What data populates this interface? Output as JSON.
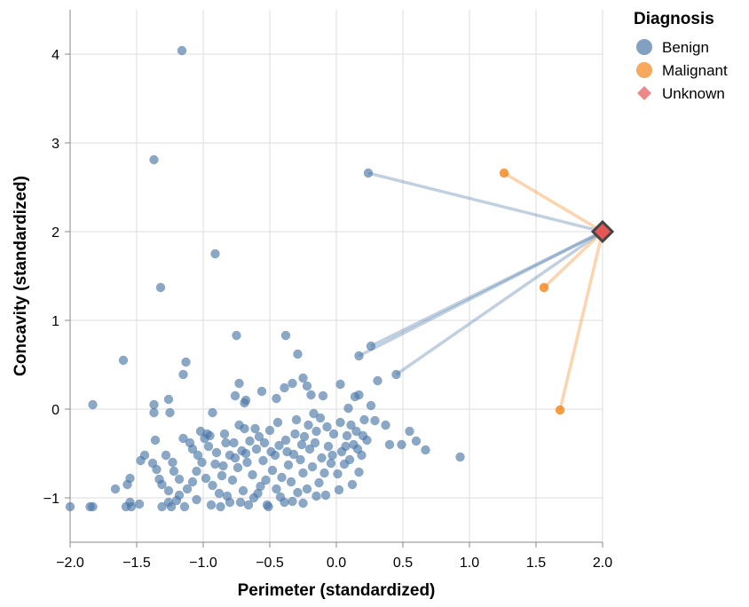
{
  "chart_data": {
    "type": "scatter",
    "xlabel": "Perimeter (standardized)",
    "ylabel": "Concavity (standardized)",
    "xlim": [
      -2.0,
      2.0
    ],
    "ylim": [
      -1.5,
      4.5
    ],
    "x_ticks": [
      -2.0,
      -1.5,
      -1.0,
      -0.5,
      0.0,
      0.5,
      1.0,
      1.5,
      2.0
    ],
    "y_ticks": [
      -1,
      0,
      1,
      2,
      3,
      4
    ],
    "x_tick_labels": [
      "−2.0",
      "−1.5",
      "−1.0",
      "−0.5",
      "0.0",
      "0.5",
      "1.0",
      "1.5",
      "2.0"
    ],
    "y_tick_labels": [
      "−1",
      "0",
      "1",
      "2",
      "3",
      "4"
    ],
    "grid": true,
    "legend": {
      "title": "Diagnosis",
      "placement": "top-right",
      "entries": [
        {
          "label": "Benign",
          "color": "#4c78a8",
          "shape": "circle"
        },
        {
          "label": "Malignant",
          "color": "#f58518",
          "shape": "circle"
        },
        {
          "label": "Unknown",
          "color": "#e45756",
          "shape": "diamond"
        }
      ]
    },
    "unknown_point": {
      "x": 2.0,
      "y": 2.0
    },
    "neighbor_lines": [
      {
        "diagnosis": "Benign",
        "x": 0.24,
        "y": 2.66
      },
      {
        "diagnosis": "Benign",
        "x": 0.26,
        "y": 0.71
      },
      {
        "diagnosis": "Benign",
        "x": 0.17,
        "y": 0.6
      },
      {
        "diagnosis": "Benign",
        "x": 0.45,
        "y": 0.39
      },
      {
        "diagnosis": "Malignant",
        "x": 1.26,
        "y": 2.66
      },
      {
        "diagnosis": "Malignant",
        "x": 1.56,
        "y": 1.37
      },
      {
        "diagnosis": "Malignant",
        "x": 1.68,
        "y": -0.01
      }
    ],
    "series": [
      {
        "name": "Benign",
        "points": [
          [
            -1.16,
            4.04
          ],
          [
            -1.37,
            2.81
          ],
          [
            -0.91,
            1.75
          ],
          [
            -1.32,
            1.37
          ],
          [
            0.24,
            2.66
          ],
          [
            -0.75,
            0.83
          ],
          [
            -0.38,
            0.83
          ],
          [
            -0.29,
            0.62
          ],
          [
            -1.6,
            0.55
          ],
          [
            -1.13,
            0.53
          ],
          [
            -1.15,
            0.39
          ],
          [
            0.26,
            0.71
          ],
          [
            0.17,
            0.6
          ],
          [
            0.45,
            0.39
          ],
          [
            0.31,
            0.32
          ],
          [
            -1.83,
            0.05
          ],
          [
            -1.37,
            0.05
          ],
          [
            -1.26,
            0.11
          ],
          [
            -1.25,
            -0.04
          ],
          [
            -1.37,
            -0.04
          ],
          [
            -0.93,
            -0.04
          ],
          [
            -0.73,
            0.29
          ],
          [
            -0.68,
            0.1
          ],
          [
            -0.76,
            0.15
          ],
          [
            -0.69,
            0.07
          ],
          [
            -0.56,
            0.2
          ],
          [
            -0.45,
            0.12
          ],
          [
            -0.39,
            0.24
          ],
          [
            -0.33,
            0.29
          ],
          [
            -0.25,
            0.35
          ],
          [
            -0.22,
            0.26
          ],
          [
            -0.19,
            0.16
          ],
          [
            -0.1,
            0.15
          ],
          [
            0.03,
            0.28
          ],
          [
            0.09,
            0.01
          ],
          [
            0.14,
            0.14
          ],
          [
            0.17,
            0.16
          ],
          [
            0.26,
            0.04
          ],
          [
            0.29,
            -0.13
          ],
          [
            0.37,
            -0.18
          ],
          [
            0.4,
            -0.4
          ],
          [
            0.55,
            -0.25
          ],
          [
            0.6,
            -0.36
          ],
          [
            0.67,
            -0.46
          ],
          [
            0.93,
            -0.54
          ],
          [
            0.49,
            -0.4
          ],
          [
            -2.0,
            -1.1
          ],
          [
            -1.83,
            -1.1
          ],
          [
            -1.85,
            -1.1
          ],
          [
            -1.66,
            -0.9
          ],
          [
            -1.58,
            -1.1
          ],
          [
            -1.54,
            -1.1
          ],
          [
            -1.55,
            -1.05
          ],
          [
            -1.48,
            -1.07
          ],
          [
            -1.57,
            -0.85
          ],
          [
            -1.55,
            -0.78
          ],
          [
            -1.47,
            -0.58
          ],
          [
            -1.44,
            -0.52
          ],
          [
            -1.38,
            -0.61
          ],
          [
            -1.35,
            -0.68
          ],
          [
            -1.36,
            -0.35
          ],
          [
            -1.33,
            -0.79
          ],
          [
            -1.31,
            -0.85
          ],
          [
            -1.26,
            -0.92
          ],
          [
            -1.26,
            -1.05
          ],
          [
            -1.31,
            -1.1
          ],
          [
            -1.24,
            -1.1
          ],
          [
            -1.23,
            -0.6
          ],
          [
            -1.2,
            -1.03
          ],
          [
            -1.18,
            -0.79
          ],
          [
            -1.15,
            -0.33
          ],
          [
            -1.1,
            -0.38
          ],
          [
            -1.08,
            -0.82
          ],
          [
            -1.05,
            -0.7
          ],
          [
            -1.04,
            -0.52
          ],
          [
            -1.02,
            -0.25
          ],
          [
            -0.99,
            -0.33
          ],
          [
            -0.97,
            -0.28
          ],
          [
            -0.95,
            -0.3
          ],
          [
            -0.93,
            -0.86
          ],
          [
            -0.9,
            -0.49
          ],
          [
            -0.88,
            -0.95
          ],
          [
            -0.86,
            -0.75
          ],
          [
            -0.85,
            -0.64
          ],
          [
            -0.83,
            -0.38
          ],
          [
            -0.8,
            -0.52
          ],
          [
            -0.8,
            -1.05
          ],
          [
            -0.78,
            -0.8
          ],
          [
            -0.76,
            -0.55
          ],
          [
            -0.74,
            -0.66
          ],
          [
            -0.71,
            -0.47
          ],
          [
            -0.7,
            -0.92
          ],
          [
            -0.69,
            -0.22
          ],
          [
            -0.67,
            -0.6
          ],
          [
            -0.65,
            -0.36
          ],
          [
            -0.63,
            -0.74
          ],
          [
            -0.62,
            -1.0
          ],
          [
            -0.6,
            -0.45
          ],
          [
            -0.58,
            -0.31
          ],
          [
            -0.57,
            -0.87
          ],
          [
            -0.55,
            -0.58
          ],
          [
            -0.53,
            -0.8
          ],
          [
            -0.52,
            -1.08
          ],
          [
            -0.5,
            -0.24
          ],
          [
            -0.48,
            -0.69
          ],
          [
            -0.46,
            -0.52
          ],
          [
            -0.45,
            -0.9
          ],
          [
            -0.43,
            -0.41
          ],
          [
            -0.41,
            -0.77
          ],
          [
            -0.39,
            -1.05
          ],
          [
            -0.38,
            -0.35
          ],
          [
            -0.36,
            -0.63
          ],
          [
            -0.34,
            -0.82
          ],
          [
            -0.32,
            -0.51
          ],
          [
            -0.3,
            -0.12
          ],
          [
            -0.29,
            -0.94
          ],
          [
            -0.27,
            -0.57
          ],
          [
            -0.25,
            -0.72
          ],
          [
            -0.24,
            -0.31
          ],
          [
            -0.22,
            -0.9
          ],
          [
            -0.2,
            -0.45
          ],
          [
            -0.18,
            -0.65
          ],
          [
            -0.17,
            -0.05
          ],
          [
            -0.15,
            -0.25
          ],
          [
            -0.13,
            -0.83
          ],
          [
            -0.11,
            -0.55
          ],
          [
            -0.09,
            -0.72
          ],
          [
            -0.08,
            -0.97
          ],
          [
            -0.06,
            -0.42
          ],
          [
            -0.04,
            -0.61
          ],
          [
            -0.02,
            -0.28
          ],
          [
            0.01,
            -0.73
          ],
          [
            0.02,
            -0.91
          ],
          [
            0.04,
            -0.48
          ],
          [
            0.06,
            -0.62
          ],
          [
            0.08,
            -0.3
          ],
          [
            0.1,
            -0.57
          ],
          [
            0.12,
            -0.85
          ],
          [
            0.13,
            -0.4
          ],
          [
            0.15,
            -0.25
          ],
          [
            0.17,
            -0.71
          ],
          [
            0.19,
            -0.52
          ],
          [
            0.21,
            -0.12
          ],
          [
            0.23,
            -0.35
          ],
          [
            -1.12,
            -0.9
          ],
          [
            -1.05,
            -1.02
          ],
          [
            -0.98,
            -0.78
          ],
          [
            -0.94,
            -1.08
          ],
          [
            -0.87,
            -1.1
          ],
          [
            -0.82,
            -0.98
          ],
          [
            -0.72,
            -1.05
          ],
          [
            -0.66,
            -1.08
          ],
          [
            -0.59,
            -0.95
          ],
          [
            -0.51,
            -1.1
          ],
          [
            -0.42,
            -0.99
          ],
          [
            -0.33,
            -1.04
          ],
          [
            -0.25,
            -1.06
          ],
          [
            -0.15,
            -0.98
          ],
          [
            -1.28,
            -0.52
          ],
          [
            -1.22,
            -0.7
          ],
          [
            -1.18,
            -0.97
          ],
          [
            -1.14,
            -1.1
          ],
          [
            -1.08,
            -0.45
          ],
          [
            -1.01,
            -0.6
          ],
          [
            -0.96,
            -0.42
          ],
          [
            -0.91,
            -0.62
          ],
          [
            -0.84,
            -0.28
          ],
          [
            -0.77,
            -0.38
          ],
          [
            -0.73,
            -0.18
          ],
          [
            -0.68,
            -0.5
          ],
          [
            -0.61,
            -0.22
          ],
          [
            -0.54,
            -0.38
          ],
          [
            -0.49,
            -0.48
          ],
          [
            -0.44,
            -0.15
          ],
          [
            -0.37,
            -0.48
          ],
          [
            -0.31,
            -0.28
          ],
          [
            -0.26,
            -0.4
          ],
          [
            -0.21,
            -0.18
          ],
          [
            -0.16,
            -0.38
          ],
          [
            -0.12,
            -0.1
          ],
          [
            -0.07,
            -0.2
          ],
          [
            -0.03,
            -0.52
          ],
          [
            0.03,
            -0.15
          ],
          [
            0.07,
            -0.42
          ],
          [
            0.11,
            -0.18
          ],
          [
            0.16,
            -0.45
          ],
          [
            0.2,
            -0.3
          ]
        ]
      },
      {
        "name": "Malignant",
        "points": [
          [
            1.26,
            2.66
          ],
          [
            1.56,
            1.37
          ],
          [
            1.68,
            -0.01
          ]
        ]
      },
      {
        "name": "Unknown",
        "points": [
          [
            2.0,
            2.0
          ]
        ]
      }
    ]
  }
}
